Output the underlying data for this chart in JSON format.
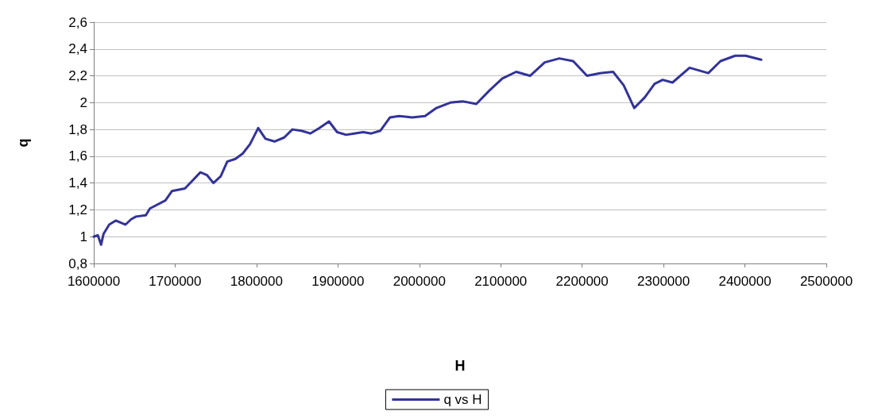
{
  "chart_data": {
    "type": "line",
    "xlabel": "H",
    "ylabel": "q",
    "xlim": [
      1600000,
      2500000
    ],
    "xticks": [
      1600000,
      1700000,
      1800000,
      1900000,
      2000000,
      2100000,
      2200000,
      2300000,
      2400000,
      2500000
    ],
    "ylim": [
      0.8,
      2.6
    ],
    "yticks": [
      {
        "value": 0.8,
        "label": "0,8"
      },
      {
        "value": 1,
        "label": "1"
      },
      {
        "value": 1.2,
        "label": "1,2"
      },
      {
        "value": 1.4,
        "label": "1,4"
      },
      {
        "value": 1.6,
        "label": "1,6"
      },
      {
        "value": 1.8,
        "label": "1,8"
      },
      {
        "value": 2,
        "label": "2"
      },
      {
        "value": 2.2,
        "label": "2,2"
      },
      {
        "value": 2.4,
        "label": "2,4"
      },
      {
        "value": 2.6,
        "label": "2,6"
      }
    ],
    "grid": "y",
    "legend": "bottom",
    "marker": "none",
    "line_style": "solid",
    "series": [
      {
        "name": "q vs H",
        "color": "#333399",
        "x": [
          1600000,
          1605000,
          1609000,
          1612000,
          1615000,
          1619000,
          1627000,
          1639000,
          1646000,
          1652000,
          1664000,
          1669000,
          1688000,
          1696000,
          1712000,
          1720000,
          1731000,
          1739000,
          1747000,
          1756000,
          1764000,
          1774000,
          1783000,
          1792000,
          1802000,
          1811000,
          1822000,
          1834000,
          1844000,
          1855000,
          1866000,
          1877000,
          1889000,
          1899000,
          1910000,
          1920000,
          1931000,
          1941000,
          1952000,
          1964000,
          1975000,
          1991000,
          2007000,
          2021000,
          2038000,
          2053000,
          2070000,
          2086000,
          2102000,
          2119000,
          2136000,
          2154000,
          2172000,
          2189000,
          2206000,
          2222000,
          2238000,
          2251000,
          2264000,
          2277000,
          2289000,
          2299000,
          2311000,
          2332000,
          2355000,
          2370000,
          2388000,
          2401000,
          2420000
        ],
        "values": [
          1.0,
          1.01,
          0.94,
          1.02,
          1.05,
          1.09,
          1.12,
          1.09,
          1.13,
          1.15,
          1.16,
          1.21,
          1.27,
          1.34,
          1.36,
          1.41,
          1.48,
          1.46,
          1.4,
          1.45,
          1.56,
          1.58,
          1.62,
          1.69,
          1.81,
          1.73,
          1.71,
          1.74,
          1.8,
          1.79,
          1.77,
          1.81,
          1.86,
          1.78,
          1.76,
          1.77,
          1.78,
          1.77,
          1.79,
          1.89,
          1.9,
          1.89,
          1.9,
          1.96,
          2.0,
          2.01,
          1.99,
          2.09,
          2.18,
          2.23,
          2.2,
          2.3,
          2.33,
          2.31,
          2.2,
          2.22,
          2.23,
          2.13,
          1.96,
          2.04,
          2.14,
          2.17,
          2.15,
          2.26,
          2.22,
          2.31,
          2.35,
          2.35,
          2.32
        ]
      }
    ]
  }
}
